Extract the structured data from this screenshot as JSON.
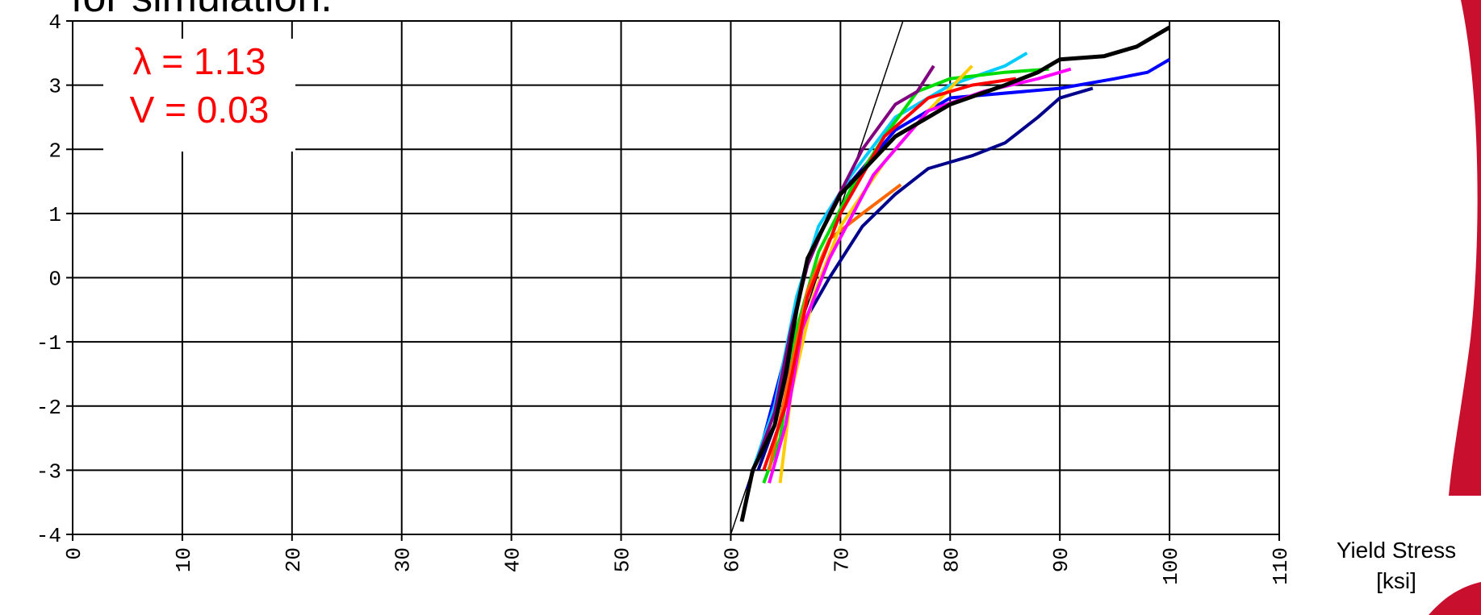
{
  "chart_data": {
    "type": "line",
    "title": "for simulation.",
    "annotations": [
      "λ = 1.13",
      "V = 0.03"
    ],
    "annotation_color": "#ff0000",
    "x_label": [
      "Yield Stress",
      "[ksi]"
    ],
    "xlim": [
      0,
      110
    ],
    "xticks": [
      0,
      10,
      20,
      30,
      40,
      50,
      60,
      70,
      80,
      90,
      100,
      110
    ],
    "ylim": [
      -4,
      4
    ],
    "yticks": [
      -4,
      -3,
      -2,
      -1,
      0,
      1,
      2,
      3,
      4
    ],
    "grid": true,
    "series": [
      {
        "color": "#000000",
        "width": 1.5,
        "x": [
          60.0,
          75.7
        ],
        "y": [
          -4,
          4
        ]
      },
      {
        "color": "#00008b",
        "width": 4,
        "x": [
          62.5,
          64,
          65.5,
          67,
          69,
          72,
          75,
          78,
          82,
          85,
          88,
          90,
          93
        ],
        "y": [
          -3,
          -2.3,
          -1.2,
          -0.6,
          0,
          0.8,
          1.3,
          1.7,
          1.9,
          2.1,
          2.5,
          2.8,
          2.95
        ]
      },
      {
        "color": "#0000ff",
        "width": 4,
        "x": [
          61.5,
          63,
          65,
          67,
          70,
          75,
          80,
          90,
          95,
          98,
          100
        ],
        "y": [
          -3.3,
          -2.5,
          -1.2,
          0.3,
          1.3,
          2.3,
          2.8,
          2.95,
          3.1,
          3.2,
          3.4
        ]
      },
      {
        "color": "#00ccff",
        "width": 4,
        "x": [
          62,
          64,
          66,
          68,
          71,
          75,
          80,
          85,
          87
        ],
        "y": [
          -3,
          -2,
          -0.3,
          0.8,
          1.6,
          2.5,
          3.0,
          3.3,
          3.5
        ]
      },
      {
        "color": "#00dd00",
        "width": 4,
        "x": [
          63,
          64.5,
          66,
          68,
          71,
          74,
          77,
          80,
          85,
          89
        ],
        "y": [
          -3.2,
          -2.5,
          -0.8,
          0.4,
          1.4,
          2.2,
          2.9,
          3.1,
          3.2,
          3.25
        ]
      },
      {
        "color": "#ff6600",
        "width": 4,
        "x": [
          63.5,
          65,
          67,
          69,
          72,
          75.5
        ],
        "y": [
          -3,
          -1.8,
          -0.2,
          0.6,
          1.0,
          1.45
        ]
      },
      {
        "color": "#ffcc00",
        "width": 4,
        "x": [
          64.5,
          65.5,
          67.5,
          70,
          74,
          78,
          82
        ],
        "y": [
          -3.2,
          -1.8,
          -0.3,
          0.8,
          1.8,
          2.6,
          3.3
        ]
      },
      {
        "color": "#ff00ff",
        "width": 4,
        "x": [
          63.5,
          65,
          66.5,
          69,
          73,
          78,
          83,
          88,
          91
        ],
        "y": [
          -3.2,
          -2.3,
          -0.8,
          0.3,
          1.6,
          2.6,
          2.9,
          3.1,
          3.25
        ]
      },
      {
        "color": "#ff0000",
        "width": 4,
        "x": [
          63,
          65,
          67,
          70,
          74,
          78,
          82,
          86
        ],
        "y": [
          -3,
          -2,
          -0.3,
          1.0,
          2.2,
          2.8,
          3.0,
          3.1
        ]
      },
      {
        "color": "#800080",
        "width": 4,
        "x": [
          62.5,
          64,
          65.5,
          67,
          69,
          72,
          75,
          77,
          78.5
        ],
        "y": [
          -2.8,
          -2.1,
          -0.8,
          0.2,
          1.0,
          2.0,
          2.7,
          2.9,
          3.3
        ]
      },
      {
        "color": "#000000",
        "width": 5,
        "x": [
          61,
          62,
          64,
          65,
          66,
          67,
          70,
          75,
          80,
          85,
          88,
          90,
          94,
          97,
          100
        ],
        "y": [
          -3.8,
          -3,
          -2.3,
          -1.5,
          -0.5,
          0.3,
          1.3,
          2.2,
          2.7,
          3.0,
          3.2,
          3.4,
          3.45,
          3.6,
          3.9
        ]
      }
    ]
  }
}
